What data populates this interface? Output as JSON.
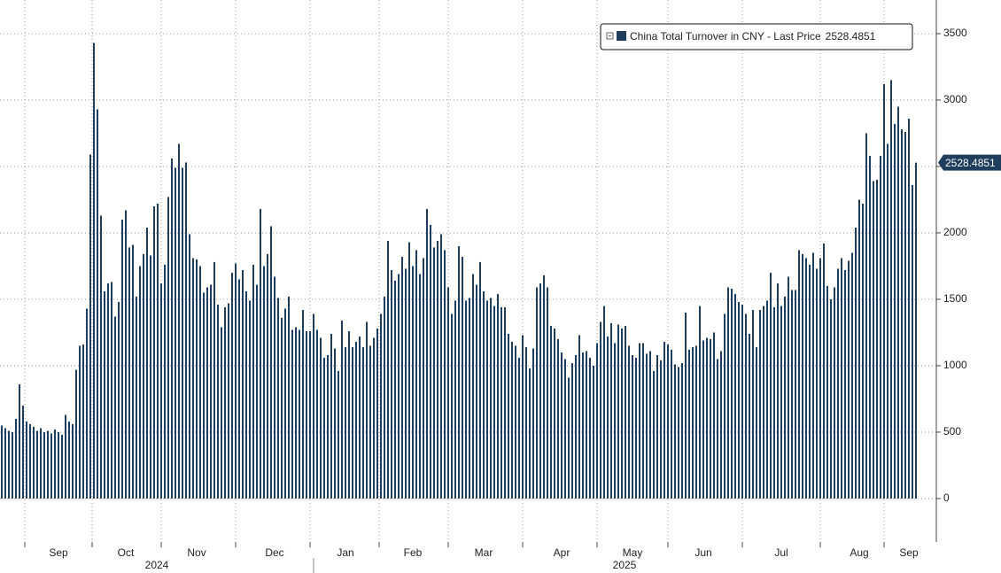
{
  "chart_data": {
    "type": "bar",
    "series": [
      {
        "name": "China Total Turnover in CNY - Last Price",
        "color": "#1f3d5c",
        "values": [
          550,
          530,
          510,
          500,
          600,
          860,
          700,
          580,
          560,
          540,
          510,
          530,
          500,
          510,
          490,
          520,
          500,
          480,
          630,
          580,
          560,
          970,
          1150,
          1160,
          1430,
          2590,
          3430,
          2930,
          2130,
          1560,
          1620,
          1630,
          1370,
          1480,
          2100,
          2170,
          1890,
          1910,
          1520,
          1750,
          1840,
          2040,
          1830,
          2200,
          2220,
          1620,
          1760,
          2270,
          2560,
          2490,
          2670,
          2490,
          2530,
          1990,
          1810,
          1800,
          1750,
          1550,
          1590,
          1610,
          1780,
          1460,
          1290,
          1440,
          1470,
          1700,
          1770,
          1650,
          1720,
          1560,
          1490,
          1760,
          1610,
          2180,
          1750,
          1840,
          2050,
          1670,
          1510,
          1360,
          1430,
          1520,
          1270,
          1290,
          1270,
          1420,
          1260,
          1260,
          1390,
          1270,
          1210,
          1060,
          1080,
          1240,
          1130,
          960,
          1340,
          1140,
          1260,
          1140,
          1180,
          1220,
          1140,
          1330,
          1150,
          1210,
          1280,
          1390,
          1520,
          1940,
          1720,
          1640,
          1690,
          1820,
          1730,
          1930,
          1750,
          1870,
          1690,
          1810,
          2180,
          2060,
          1890,
          1940,
          1990,
          1870,
          1590,
          1390,
          1490,
          1900,
          1820,
          1490,
          1510,
          1690,
          1610,
          1780,
          1560,
          1490,
          1510,
          1450,
          1540,
          1440,
          1440,
          1240,
          1180,
          1150,
          1060,
          1230,
          1140,
          980,
          1130,
          1590,
          1620,
          1680,
          1590,
          1300,
          1280,
          1200,
          1100,
          1050,
          910,
          1020,
          1080,
          1230,
          1100,
          1110,
          1060,
          1000,
          1170,
          1330,
          1450,
          1220,
          1320,
          1170,
          1310,
          1280,
          1300,
          1150,
          1080,
          1060,
          1170,
          1170,
          1090,
          1110,
          960,
          1080,
          1040,
          1180,
          1160,
          1120,
          1010,
          990,
          1020,
          1400,
          1120,
          1140,
          1150,
          1450,
          1190,
          1210,
          1200,
          1250,
          1050,
          1110,
          1390,
          1590,
          1580,
          1540,
          1480,
          1460,
          1390,
          1240,
          1420,
          1140,
          1420,
          1450,
          1490,
          1700,
          1440,
          1620,
          1450,
          1520,
          1670,
          1570,
          1570,
          1870,
          1840,
          1810,
          1760,
          1850,
          1730,
          1810,
          1920,
          1600,
          1500,
          1590,
          1730,
          1810,
          1720,
          1790,
          1850,
          2040,
          2250,
          2220,
          2750,
          2580,
          2390,
          2400,
          2580,
          3120,
          2670,
          3150,
          2820,
          2950,
          2780,
          2760,
          2860,
          2360,
          2528.4851
        ]
      }
    ],
    "categories": [
      null,
      null,
      null,
      null,
      null,
      null,
      null,
      null,
      null,
      null,
      null,
      null,
      null,
      null,
      null,
      null,
      "Sep",
      null,
      null,
      null,
      null,
      null,
      null,
      null,
      null,
      null,
      null,
      null,
      null,
      null,
      null,
      null,
      null,
      null,
      null,
      "Oct",
      null,
      null,
      null,
      null,
      null,
      null,
      null,
      null,
      null,
      null,
      null,
      null,
      null,
      null,
      null,
      null,
      null,
      null,
      null,
      "Nov",
      null,
      null,
      null,
      null,
      null,
      null,
      null,
      null,
      null,
      null,
      null,
      null,
      null,
      null,
      null,
      null,
      null,
      null,
      null,
      null,
      null,
      "Dec",
      null,
      null,
      null,
      null,
      null,
      null,
      null,
      null,
      null,
      null,
      null,
      null,
      null,
      null,
      null,
      null,
      null,
      null,
      null,
      "Jan",
      null,
      null,
      null,
      null,
      null,
      null,
      null,
      null,
      null,
      null,
      null,
      null,
      null,
      null,
      null,
      null,
      null,
      null,
      "Feb",
      null,
      null,
      null,
      null,
      null,
      null,
      null,
      null,
      null,
      null,
      null,
      null,
      null,
      null,
      null,
      null,
      null,
      null,
      null,
      "Mar",
      null,
      null,
      null,
      null,
      null,
      null,
      null,
      null,
      null,
      null,
      null,
      null,
      null,
      null,
      null,
      null,
      null,
      null,
      null,
      null,
      null,
      "Apr",
      null,
      null,
      null,
      null,
      null,
      null,
      null,
      null,
      null,
      null,
      null,
      null,
      null,
      null,
      null,
      null,
      null,
      null,
      null,
      "May",
      null,
      null,
      null,
      null,
      null,
      null,
      null,
      null,
      null,
      null,
      null,
      null,
      null,
      null,
      null,
      null,
      null,
      null,
      null,
      "Jun",
      null,
      null,
      null,
      null,
      null,
      null,
      null,
      null,
      null,
      null,
      null,
      null,
      null,
      null,
      null,
      null,
      null,
      null,
      null,
      null,
      null,
      "Jul",
      null,
      null,
      null,
      null,
      null,
      null,
      null,
      null,
      null,
      null,
      null,
      null,
      null,
      null,
      null,
      null,
      null,
      null,
      null,
      null,
      null,
      "Aug",
      null,
      null,
      null,
      null,
      null,
      null,
      null,
      null,
      null,
      null,
      null,
      null,
      null,
      "Sep",
      null,
      null
    ],
    "years": [
      "2024",
      "2025"
    ],
    "ylim": [
      -327,
      3753
    ],
    "yticks": [
      0,
      500,
      1000,
      1500,
      2000,
      2500,
      3000,
      3500
    ],
    "grid": true
  }
}
